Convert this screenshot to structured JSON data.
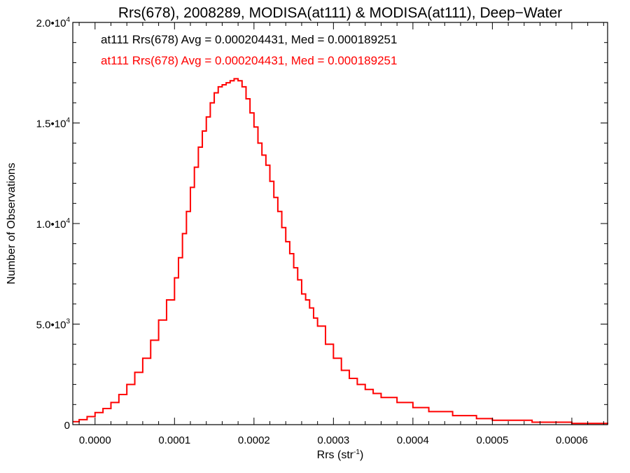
{
  "chart_data": {
    "type": "histogram",
    "title": "Rrs(678), 2008289, MODISA(at111) & MODISA(at111), Deep−Water",
    "xlabel": "Rrs (str",
    "xlabel_sup": "-1",
    "xlabel_close": ")",
    "ylabel": "Number of Observations",
    "xlim": [
      -2.8e-05,
      0.000645
    ],
    "ylim": [
      0,
      20000
    ],
    "x_ticks": [
      {
        "value": 0.0,
        "label": "0.0000"
      },
      {
        "value": 0.0001,
        "label": "0.0001"
      },
      {
        "value": 0.0002,
        "label": "0.0002"
      },
      {
        "value": 0.0003,
        "label": "0.0003"
      },
      {
        "value": 0.0004,
        "label": "0.0004"
      },
      {
        "value": 0.0005,
        "label": "0.0005"
      },
      {
        "value": 0.0006,
        "label": "0.0006"
      }
    ],
    "y_ticks": [
      {
        "value": 0,
        "label": "0",
        "sup": ""
      },
      {
        "value": 5000,
        "label": "5.0•10",
        "sup": "3"
      },
      {
        "value": 10000,
        "label": "1.0•10",
        "sup": "4"
      },
      {
        "value": 15000,
        "label": "1.5•10",
        "sup": "4"
      },
      {
        "value": 20000,
        "label": "2.0•10",
        "sup": "4"
      }
    ],
    "annotations": [
      {
        "text": "at111 Rrs(678) Avg = 0.000204431, Med = 0.000189251",
        "color": "#000000"
      },
      {
        "text": "at111 Rrs(678) Avg = 0.000204431, Med = 0.000189251",
        "color": "#ff0000"
      }
    ],
    "series": [
      {
        "color": "#ff0000",
        "x": [
          -2.8e-05,
          -2e-05,
          -1e-05,
          0.0,
          1e-05,
          2e-05,
          3e-05,
          4e-05,
          5e-05,
          6e-05,
          7e-05,
          8e-05,
          9e-05,
          0.0001,
          0.000105,
          0.00011,
          0.000115,
          0.00012,
          0.000125,
          0.00013,
          0.000135,
          0.00014,
          0.000145,
          0.00015,
          0.000155,
          0.00016,
          0.000165,
          0.00017,
          0.000175,
          0.00018,
          0.000185,
          0.00019,
          0.000195,
          0.0002,
          0.000205,
          0.00021,
          0.000215,
          0.00022,
          0.000225,
          0.00023,
          0.000235,
          0.00024,
          0.000245,
          0.00025,
          0.000255,
          0.00026,
          0.000265,
          0.00027,
          0.000275,
          0.00028,
          0.00029,
          0.0003,
          0.00031,
          0.00032,
          0.00033,
          0.00034,
          0.00035,
          0.00036,
          0.00038,
          0.0004,
          0.00042,
          0.00045,
          0.00048,
          0.0005,
          0.00055,
          0.0006,
          0.000645
        ],
        "y": [
          150,
          250,
          400,
          600,
          800,
          1100,
          1500,
          2000,
          2600,
          3300,
          4200,
          5200,
          6200,
          7300,
          8300,
          9500,
          10600,
          11800,
          12800,
          13800,
          14600,
          15300,
          16000,
          16500,
          16800,
          16900,
          17000,
          17100,
          17200,
          17100,
          16800,
          16200,
          15500,
          14800,
          14000,
          13400,
          12900,
          12100,
          11300,
          10600,
          9800,
          9100,
          8500,
          7800,
          7200,
          6500,
          6200,
          5800,
          5300,
          4900,
          4000,
          3300,
          2700,
          2300,
          2000,
          1750,
          1550,
          1350,
          1100,
          850,
          650,
          450,
          300,
          220,
          120,
          60,
          20
        ]
      }
    ]
  }
}
